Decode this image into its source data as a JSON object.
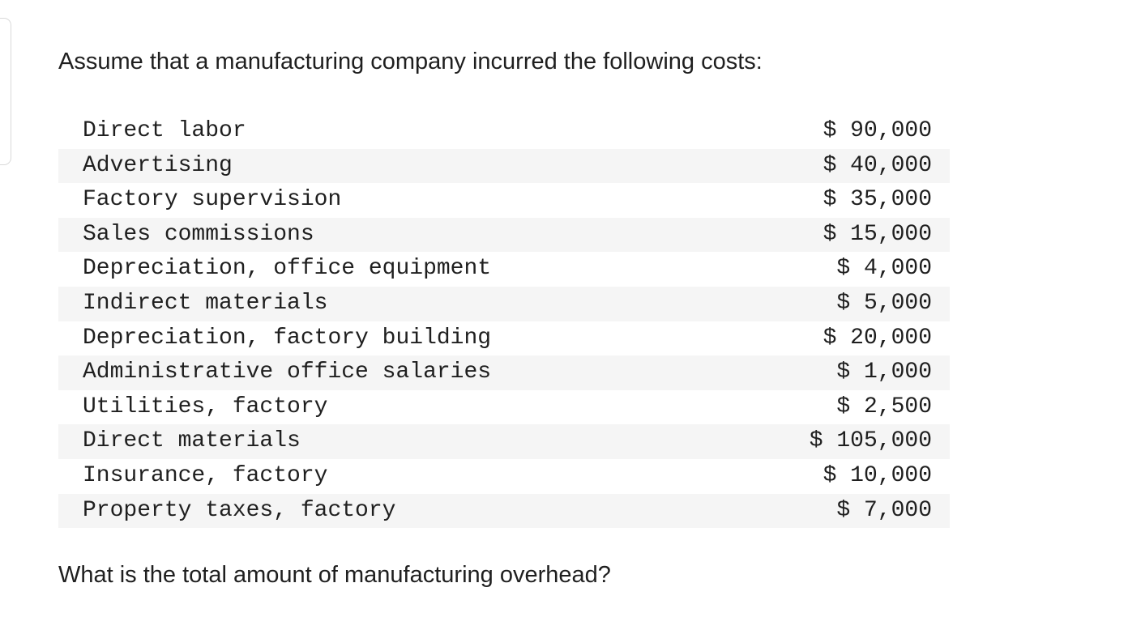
{
  "question": {
    "intro": "Assume that a manufacturing company incurred the following costs:",
    "prompt": "What is the total amount of manufacturing overhead?"
  },
  "costs": [
    {
      "label": "Direct labor",
      "amount": "$ 90,000"
    },
    {
      "label": "Advertising",
      "amount": "$ 40,000"
    },
    {
      "label": "Factory supervision",
      "amount": "$ 35,000"
    },
    {
      "label": "Sales commissions",
      "amount": "$ 15,000"
    },
    {
      "label": "Depreciation, office equipment",
      "amount": "$ 4,000"
    },
    {
      "label": "Indirect materials",
      "amount": "$ 5,000"
    },
    {
      "label": "Depreciation, factory building",
      "amount": "$ 20,000"
    },
    {
      "label": "Administrative office salaries",
      "amount": "$ 1,000"
    },
    {
      "label": "Utilities, factory",
      "amount": "$ 2,500"
    },
    {
      "label": "Direct materials",
      "amount": "$ 105,000"
    },
    {
      "label": "Insurance, factory",
      "amount": "$ 10,000"
    },
    {
      "label": "Property taxes, factory",
      "amount": "$ 7,000"
    }
  ],
  "colors": {
    "text": "#1f1f1f",
    "stripe": "#f5f5f5",
    "border": "#d9d9d9"
  }
}
